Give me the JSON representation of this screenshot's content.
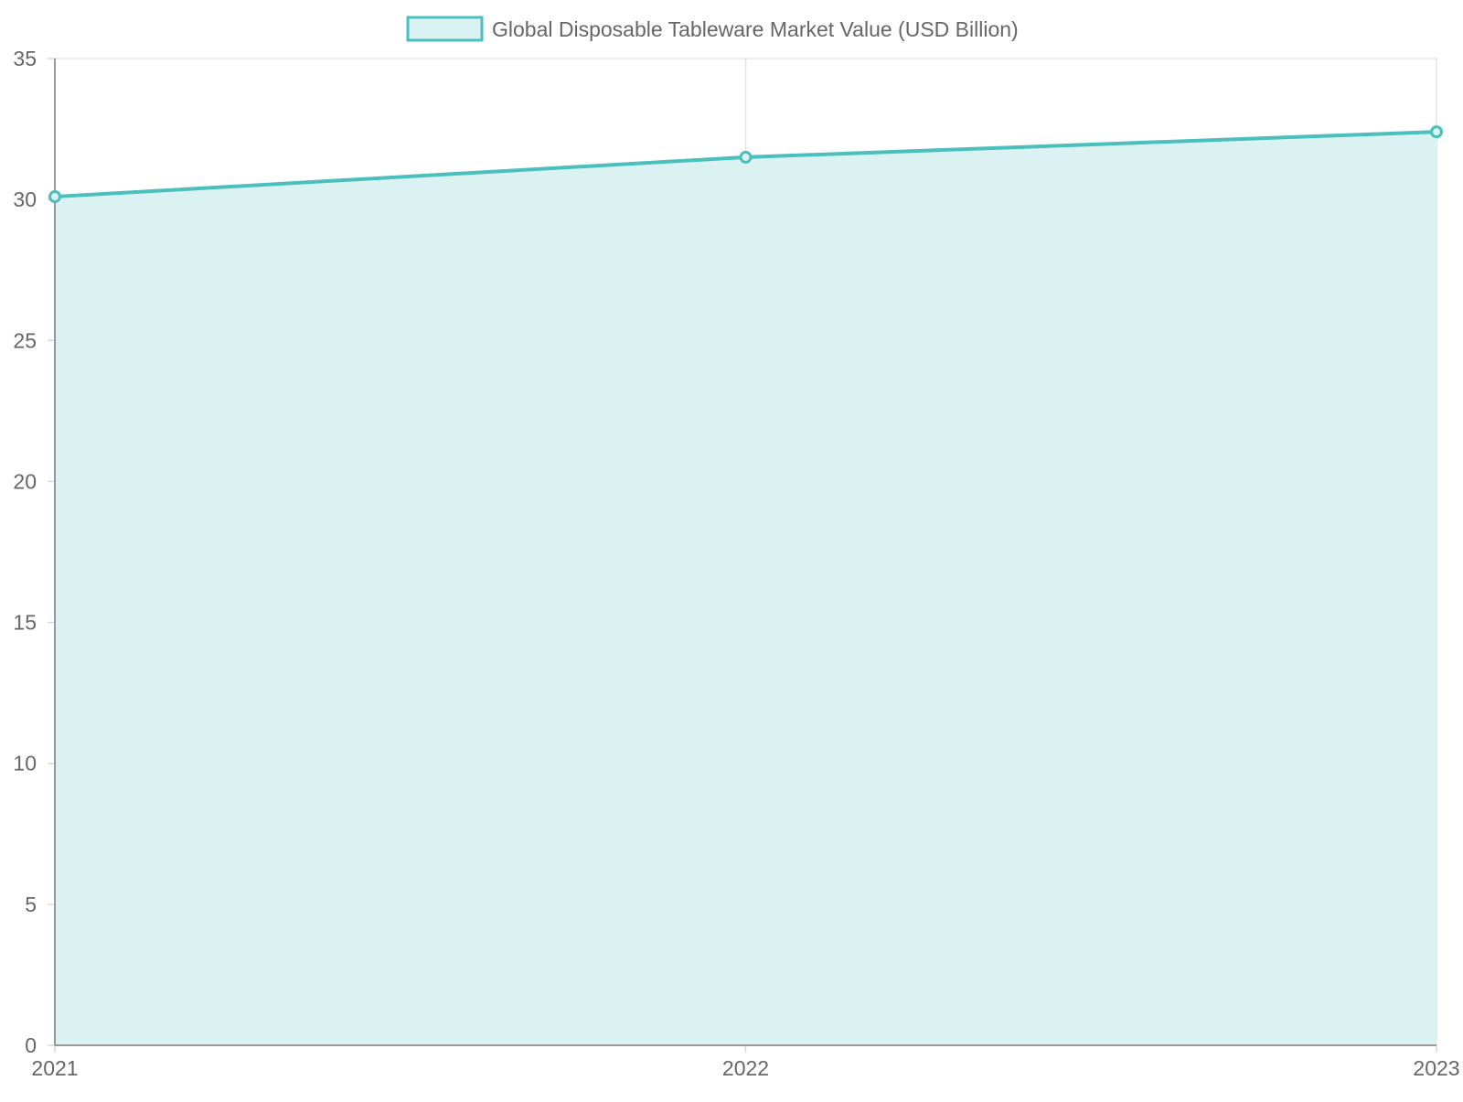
{
  "chart_data": {
    "type": "area",
    "categories": [
      "2021",
      "2022",
      "2023"
    ],
    "series": [
      {
        "name": "Global Disposable Tableware Market Value (USD Billion)",
        "values": [
          30.1,
          31.5,
          32.4
        ],
        "line_color": "#4bbfbc",
        "fill_color": "#daf2f2"
      }
    ],
    "yticks": [
      0,
      5,
      10,
      15,
      20,
      25,
      30,
      35
    ],
    "ylim": [
      0,
      35
    ],
    "grid": true,
    "legend_position": "top"
  }
}
